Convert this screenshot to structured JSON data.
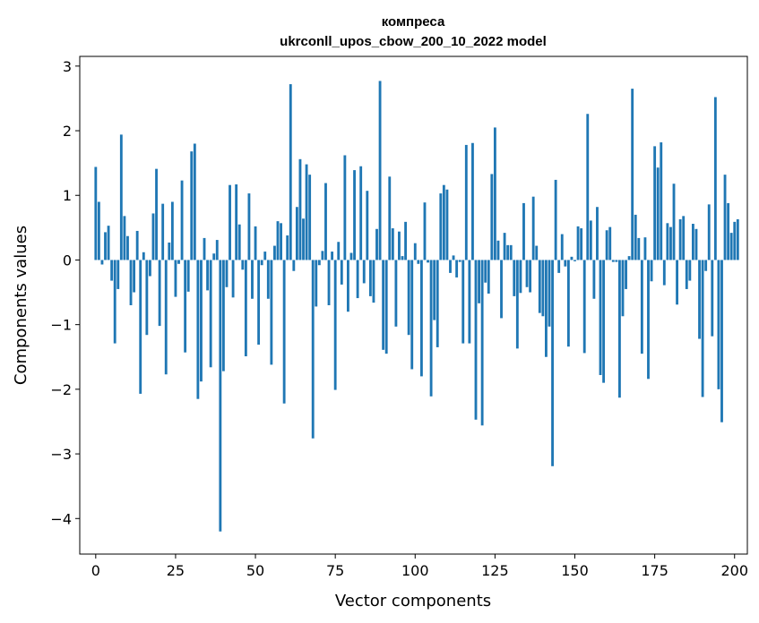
{
  "chart_data": {
    "type": "bar",
    "title_line1": "компреса",
    "title_line2": "ukrconll_upos_cbow_200_10_2022 model",
    "xlabel": "Vector components",
    "ylabel": "Components values",
    "xlim": [
      -5,
      204
    ],
    "ylim": [
      -4.55,
      3.15
    ],
    "x_ticks": [
      0,
      25,
      50,
      75,
      100,
      125,
      150,
      175,
      200
    ],
    "y_ticks": [
      -4,
      -3,
      -2,
      -1,
      0,
      1,
      2,
      3
    ],
    "x_tick_labels": [
      "0",
      "25",
      "50",
      "75",
      "100",
      "125",
      "150",
      "175",
      "200"
    ],
    "y_tick_labels": [
      "−4",
      "−3",
      "−2",
      "−1",
      "0",
      "1",
      "2",
      "3"
    ],
    "grid": false,
    "bar_color": "#1f77b4",
    "values": [
      1.44,
      0.9,
      -0.07,
      0.43,
      0.53,
      -0.32,
      -1.29,
      -0.45,
      1.94,
      0.68,
      0.37,
      -0.7,
      -0.5,
      0.45,
      -2.07,
      0.12,
      -1.16,
      -0.25,
      0.72,
      1.41,
      -1.02,
      0.87,
      -1.77,
      0.27,
      0.9,
      -0.57,
      -0.06,
      1.23,
      -1.43,
      -0.49,
      1.68,
      1.8,
      -2.15,
      -1.88,
      0.34,
      -0.47,
      -1.66,
      0.1,
      0.31,
      -4.2,
      -1.72,
      -0.42,
      1.16,
      -0.58,
      1.17,
      0.55,
      -0.15,
      -1.49,
      1.03,
      -0.6,
      0.52,
      -1.31,
      -0.08,
      0.13,
      -0.6,
      -1.62,
      0.22,
      0.6,
      0.57,
      -2.22,
      0.38,
      2.72,
      -0.17,
      0.82,
      1.56,
      0.64,
      1.48,
      1.32,
      -2.76,
      -0.72,
      -0.08,
      0.14,
      1.19,
      -0.7,
      0.13,
      -2.01,
      0.28,
      -0.38,
      1.62,
      -0.8,
      0.11,
      1.39,
      -0.59,
      1.45,
      -0.36,
      1.07,
      -0.56,
      -0.66,
      0.48,
      2.77,
      -1.39,
      -1.45,
      1.29,
      0.49,
      -1.03,
      0.44,
      0.06,
      0.59,
      -1.16,
      -1.69,
      0.26,
      -0.06,
      -1.8,
      0.89,
      -0.04,
      -2.11,
      -0.93,
      -1.35,
      1.03,
      1.16,
      1.09,
      -0.2,
      0.07,
      -0.27,
      -0.03,
      -1.29,
      1.78,
      -1.29,
      1.81,
      -2.47,
      -0.67,
      -2.56,
      -0.35,
      -0.52,
      1.33,
      2.05,
      0.3,
      -0.9,
      0.42,
      0.23,
      0.23,
      -0.56,
      -1.37,
      -0.51,
      0.88,
      -0.42,
      -0.5,
      0.98,
      0.22,
      -0.82,
      -0.87,
      -1.5,
      -1.03,
      -3.19,
      1.24,
      -0.2,
      0.4,
      -0.1,
      -1.34,
      0.05,
      -0.02,
      0.52,
      0.49,
      -1.44,
      2.26,
      0.61,
      -0.6,
      0.82,
      -1.78,
      -1.9,
      0.46,
      0.51,
      -0.03,
      -0.03,
      -2.13,
      -0.87,
      -0.45,
      0.06,
      2.65,
      0.7,
      0.34,
      -1.45,
      0.35,
      -1.84,
      -0.33,
      1.76,
      1.43,
      1.82,
      -0.39,
      0.57,
      0.51,
      1.18,
      -0.69,
      0.63,
      0.68,
      -0.45,
      -0.32,
      0.56,
      0.48,
      -1.22,
      -2.12,
      -0.17,
      0.86,
      -1.18,
      2.52,
      -2.0,
      -2.51,
      1.32,
      0.88,
      0.42,
      0.59,
      0.63
    ]
  }
}
